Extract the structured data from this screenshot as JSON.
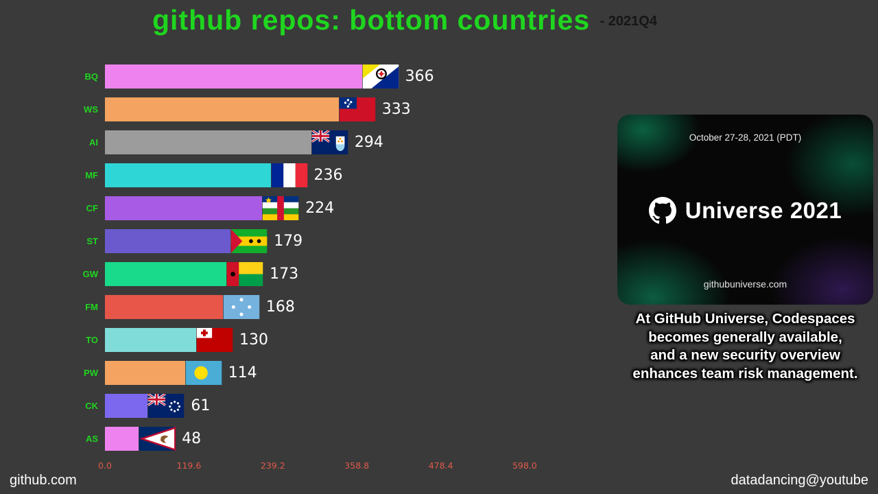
{
  "header": {
    "title": "github repos: bottom countries",
    "period_label": "- 2021Q4"
  },
  "footer": {
    "left": "github.com",
    "right": "datadancing@youtube"
  },
  "card": {
    "date": "October 27-28, 2021 (PDT)",
    "brand": "Universe 2021",
    "url": "githubuniverse.com",
    "logo_icon": "github-octocat-mark"
  },
  "caption": "At GitHub Universe, Codespaces\nbecomes generally available,\nand a new security overview\nenhances team risk management.",
  "colors": {
    "background": "#3a3a3a",
    "title_green": "#1fd61f",
    "bar_label_green": "#1fd61f",
    "axis_tick_red": "#e05a4a",
    "value_text": "#ffffff"
  },
  "chart_data": {
    "type": "bar",
    "orientation": "horizontal",
    "title": "github repos: bottom countries",
    "period": "2021Q4",
    "categories": [
      "BQ",
      "WS",
      "AI",
      "MF",
      "CF",
      "ST",
      "GW",
      "FM",
      "TO",
      "PW",
      "CK",
      "AS"
    ],
    "values": [
      366,
      333,
      294,
      236,
      224,
      179,
      173,
      168,
      130,
      114,
      61,
      48
    ],
    "bar_colors": [
      "#ee82ee",
      "#f4a460",
      "#9c9c9c",
      "#2fd6d6",
      "#a85ce6",
      "#6a5acd",
      "#19d98b",
      "#e8564a",
      "#80dcd8",
      "#f4a460",
      "#7b68ee",
      "#ee82ee"
    ],
    "flag_icons": [
      "flag-bonaire",
      "flag-samoa",
      "flag-anguilla",
      "flag-saint-martin-france",
      "flag-central-african-republic",
      "flag-sao-tome-and-principe",
      "flag-guinea-bissau",
      "flag-micronesia",
      "flag-tonga",
      "flag-palau",
      "flag-cook-islands",
      "flag-american-samoa"
    ],
    "xlim": [
      0,
      598
    ],
    "x_ticks": [
      0,
      119.6,
      239.2,
      358.8,
      478.4,
      598
    ],
    "x_tick_labels": [
      "0.0",
      "119.6",
      "239.2",
      "358.8",
      "478.4",
      "598.0"
    ],
    "legend": false,
    "grid": false
  }
}
